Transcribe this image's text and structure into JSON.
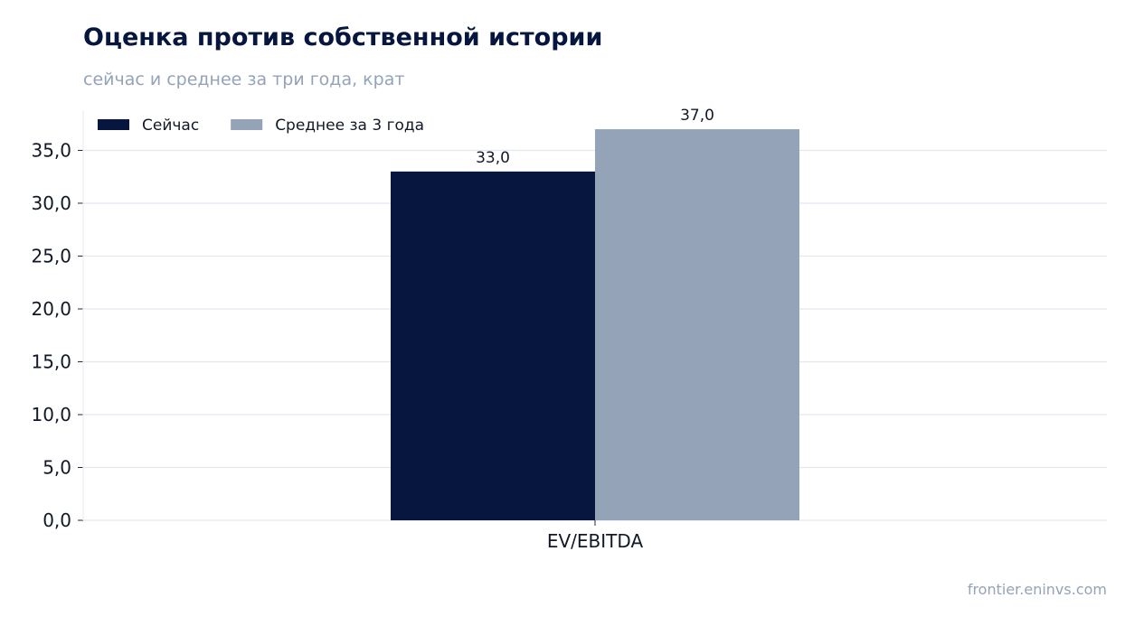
{
  "header": {
    "title": "Оценка против собственной истории",
    "subtitle": "сейчас и среднее за три года, крат"
  },
  "footer": {
    "source": "frontier.eninvs.com"
  },
  "chart_data": {
    "type": "bar",
    "categories": [
      "EV/EBITDA"
    ],
    "series": [
      {
        "name": "Сейчас",
        "values": [
          33.0
        ],
        "value_labels": [
          "33,0"
        ],
        "color": "#06163f"
      },
      {
        "name": "Среднее за 3 года",
        "values": [
          37.0
        ],
        "value_labels": [
          "37,0"
        ],
        "color": "#94a3b8"
      }
    ],
    "ylim": [
      0,
      38.8
    ],
    "yticks": [
      0,
      5,
      10,
      15,
      20,
      25,
      30,
      35
    ],
    "ytick_labels": [
      "0,0",
      "5,0",
      "10,0",
      "15,0",
      "20,0",
      "25,0",
      "30,0",
      "35,0"
    ],
    "grid": true,
    "legend": "top-left",
    "xlabel": "",
    "ylabel": ""
  }
}
